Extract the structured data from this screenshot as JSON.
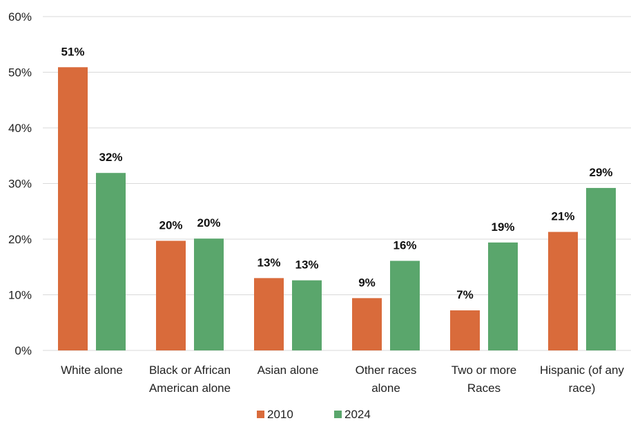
{
  "chart_data": {
    "type": "bar",
    "categories": [
      [
        "White alone"
      ],
      [
        "Black or African",
        "American alone"
      ],
      [
        "Asian alone"
      ],
      [
        "Other races",
        "alone"
      ],
      [
        "Two or more",
        "Races"
      ],
      [
        "Hispanic (of any",
        "race)"
      ]
    ],
    "series": [
      {
        "name": "2010",
        "color": "#d96b3b",
        "values": [
          51,
          20,
          13,
          9,
          7,
          21
        ],
        "labels": [
          "51%",
          "20%",
          "13%",
          "9%",
          "7%",
          "21%"
        ],
        "plot_values": [
          50.9,
          19.7,
          13.0,
          9.4,
          7.2,
          21.3
        ]
      },
      {
        "name": "2024",
        "color": "#5aa66c",
        "values": [
          32,
          20,
          13,
          16,
          19,
          29
        ],
        "labels": [
          "32%",
          "20%",
          "13%",
          "16%",
          "19%",
          "29%"
        ],
        "plot_values": [
          31.9,
          20.1,
          12.6,
          16.1,
          19.4,
          29.2
        ]
      }
    ],
    "ylim": [
      0,
      60
    ],
    "yticks": [
      "0%",
      "10%",
      "20%",
      "30%",
      "40%",
      "50%",
      "60%"
    ],
    "grid": true,
    "legend_position": "bottom"
  }
}
